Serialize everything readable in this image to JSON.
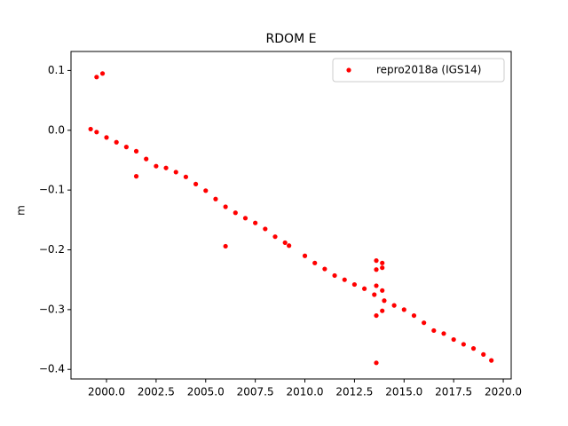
{
  "chart_data": {
    "type": "scatter",
    "title": "RDOM E",
    "ylabel": "m",
    "xlim": [
      1998.21,
      2020.4
    ],
    "ylim": [
      -0.416,
      0.1318
    ],
    "xticks": [
      {
        "value": 2000,
        "label": "2000.0"
      },
      {
        "value": 2002.5,
        "label": "2002.5"
      },
      {
        "value": 2005,
        "label": "2005.0"
      },
      {
        "value": 2007.5,
        "label": "2007.5"
      },
      {
        "value": 2010,
        "label": "2010.0"
      },
      {
        "value": 2012.5,
        "label": "2012.5"
      },
      {
        "value": 2015,
        "label": "2015.0"
      },
      {
        "value": 2017.5,
        "label": "2017.5"
      },
      {
        "value": 2020,
        "label": "2020.0"
      }
    ],
    "yticks": [
      {
        "value": -0.4,
        "label": "−0.4"
      },
      {
        "value": -0.3,
        "label": "−0.3"
      },
      {
        "value": -0.2,
        "label": "−0.2"
      },
      {
        "value": -0.1,
        "label": "−0.1"
      },
      {
        "value": 0,
        "label": "0.0"
      },
      0.1
    ],
    "legend": "upper right",
    "series": [
      {
        "name": "repro2018a (IGS14)",
        "color": "#ff0000",
        "x": [
          1999.2,
          1999.5,
          2000.0,
          2000.5,
          2001.0,
          2001.5,
          2002.0,
          2002.5,
          2003.0,
          2003.5,
          2004.0,
          2004.5,
          2005.0,
          2005.5,
          2006.0,
          2006.5,
          2007.0,
          2007.5,
          2008.0,
          2008.5,
          2009.0,
          2009.2,
          2010.0,
          2010.5,
          2011.0,
          2011.5,
          2012.0,
          2012.5,
          2013.0,
          2013.5,
          2014.0,
          2014.5,
          2015.0,
          2015.5,
          2016.0,
          2016.5,
          2017.0,
          2017.5,
          2018.0,
          2018.5,
          2019.0,
          2019.4,
          1999.5,
          1999.8,
          2001.5,
          2006.0,
          2013.6,
          2013.6,
          2013.9,
          2013.9,
          2013.6,
          2013.9,
          2013.6,
          2013.9,
          2013.6
        ],
        "values": [
          0.002,
          -0.003,
          -0.012,
          -0.02,
          -0.028,
          -0.035,
          -0.048,
          -0.06,
          -0.063,
          -0.07,
          -0.078,
          -0.09,
          -0.101,
          -0.115,
          -0.128,
          -0.138,
          -0.147,
          -0.155,
          -0.165,
          -0.178,
          -0.188,
          -0.193,
          -0.21,
          -0.222,
          -0.232,
          -0.243,
          -0.25,
          -0.258,
          -0.265,
          -0.275,
          -0.285,
          -0.293,
          -0.3,
          -0.31,
          -0.322,
          -0.335,
          -0.34,
          -0.35,
          -0.358,
          -0.365,
          -0.375,
          -0.385,
          0.089,
          0.095,
          -0.077,
          -0.194,
          -0.218,
          -0.233,
          -0.222,
          -0.23,
          -0.26,
          -0.268,
          -0.31,
          -0.302,
          -0.389
        ]
      }
    ]
  }
}
